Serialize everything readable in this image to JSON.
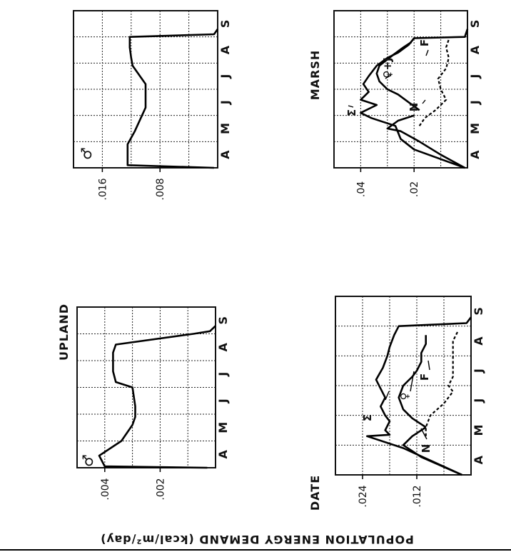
{
  "figure": {
    "yaxis_label": "POPULATION ENERGY DEMAND (kcal/m²/day)",
    "xaxis_label": "DATE",
    "group_upland": "UPLAND",
    "group_marsh": "MARSH"
  },
  "chart_data": [
    {
      "id": "upland-male",
      "type": "line",
      "group": "UPLAND",
      "symbol": "♂",
      "months": [
        "A",
        "M",
        "J",
        "J",
        "A",
        "S"
      ],
      "ylim": [
        0,
        0.005
      ],
      "yticks": [
        ".004",
        ".002"
      ],
      "series": [
        {
          "style": "solid",
          "label": "♂",
          "x": [
            0.0,
            0.05,
            0.45,
            1.0,
            1.6,
            1.9,
            2.3,
            3.0,
            3.2,
            3.6,
            4.0,
            4.3,
            4.6,
            5.0,
            5.1,
            5.3
          ],
          "y": [
            0.0003,
            0.004,
            0.0042,
            0.0034,
            0.003,
            0.0029,
            0.0029,
            0.003,
            0.0036,
            0.0037,
            0.0037,
            0.0037,
            0.0036,
            0.0008,
            0.0002,
            0.0
          ]
        }
      ]
    },
    {
      "id": "marsh-male",
      "type": "line",
      "group": "MARSH",
      "symbol": "♂",
      "months": [
        "A",
        "M",
        "J",
        "J",
        "A",
        "S"
      ],
      "ylim": [
        0,
        0.02
      ],
      "yticks": [
        ".016",
        ".008"
      ],
      "series": [
        {
          "style": "solid",
          "label": "♂",
          "x": [
            0.0,
            0.1,
            0.9,
            1.4,
            2.3,
            3.2,
            3.9,
            4.2,
            4.6,
            5.0,
            5.1,
            5.3
          ],
          "y": [
            0.0005,
            0.0125,
            0.0125,
            0.0115,
            0.01,
            0.01,
            0.0118,
            0.012,
            0.0122,
            0.0122,
            0.0005,
            0.0
          ]
        }
      ]
    },
    {
      "id": "upland-population",
      "type": "line",
      "group": "UPLAND",
      "months": [
        "A",
        "M",
        "J",
        "J",
        "A",
        "S"
      ],
      "ylim": [
        0,
        0.03
      ],
      "yticks": [
        ".024",
        ".012"
      ],
      "series": [
        {
          "name": "Σ",
          "style": "solid",
          "x": [
            0.0,
            0.9,
            1.3,
            1.35,
            1.5,
            1.8,
            2.0,
            2.3,
            2.6,
            2.9,
            3.2,
            3.6,
            4.0,
            4.3,
            4.7,
            5.0,
            5.1,
            5.3
          ],
          "y": [
            0.002,
            0.015,
            0.023,
            0.018,
            0.019,
            0.018,
            0.019,
            0.02,
            0.019,
            0.02,
            0.021,
            0.0195,
            0.0185,
            0.018,
            0.017,
            0.016,
            0.001,
            0.0
          ]
        },
        {
          "name": "N",
          "style": "solid",
          "x": [
            0.0,
            0.6,
            1.0,
            1.3,
            1.6
          ],
          "y": [
            0.002,
            0.011,
            0.015,
            0.013,
            0.01
          ]
        },
        {
          "name": "♀",
          "style": "solid",
          "x": [
            1.6,
            1.9,
            2.2,
            2.6,
            3.0,
            3.3,
            3.5,
            3.8,
            4.1,
            4.4,
            4.7
          ],
          "y": [
            0.01,
            0.013,
            0.015,
            0.016,
            0.015,
            0.013,
            0.012,
            0.011,
            0.011,
            0.01,
            0.01
          ]
        },
        {
          "name": "F",
          "style": "dashed",
          "x": [
            1.3,
            1.6,
            2.0,
            2.4,
            2.8,
            3.0,
            3.3,
            3.6,
            4.0,
            4.5,
            4.8
          ],
          "y": [
            0.01,
            0.01,
            0.009,
            0.006,
            0.004,
            0.005,
            0.004,
            0.004,
            0.004,
            0.004,
            0.003
          ]
        }
      ]
    },
    {
      "id": "marsh-population",
      "type": "line",
      "group": "MARSH",
      "months": [
        "A",
        "M",
        "J",
        "J",
        "A",
        "S"
      ],
      "ylim": [
        0,
        0.05
      ],
      "yticks": [
        ".04",
        ".02"
      ],
      "series": [
        {
          "name": "Σ",
          "style": "solid",
          "x": [
            0.0,
            0.7,
            1.1,
            1.6,
            1.9,
            2.1,
            2.4,
            2.6,
            2.9,
            3.2,
            3.5,
            3.9,
            4.2,
            4.4,
            4.7,
            4.95,
            5.0,
            5.3
          ],
          "y": [
            0.001,
            0.02,
            0.025,
            0.027,
            0.036,
            0.04,
            0.034,
            0.04,
            0.037,
            0.039,
            0.037,
            0.034,
            0.03,
            0.026,
            0.022,
            0.02,
            0.001,
            0.0
          ]
        },
        {
          "name": "N",
          "style": "solid",
          "x": [
            0.0,
            0.5,
            1.0,
            1.4,
            1.5,
            1.8,
            2.0
          ],
          "y": [
            0.001,
            0.01,
            0.018,
            0.025,
            0.03,
            0.026,
            0.02
          ]
        },
        {
          "name": "♀+J",
          "style": "solid",
          "x": [
            2.2,
            2.5,
            2.8,
            3.0,
            3.3,
            3.6,
            3.9,
            4.3,
            4.6,
            4.8
          ],
          "y": [
            0.018,
            0.022,
            0.026,
            0.03,
            0.033,
            0.034,
            0.033,
            0.028,
            0.024,
            0.021
          ]
        },
        {
          "name": "F",
          "style": "dashed",
          "x": [
            1.6,
            1.9,
            2.2,
            2.6,
            3.0,
            3.4,
            3.8,
            4.2,
            4.6,
            4.9
          ],
          "y": [
            0.018,
            0.016,
            0.012,
            0.008,
            0.01,
            0.011,
            0.008,
            0.007,
            0.008,
            0.007
          ]
        }
      ]
    }
  ]
}
